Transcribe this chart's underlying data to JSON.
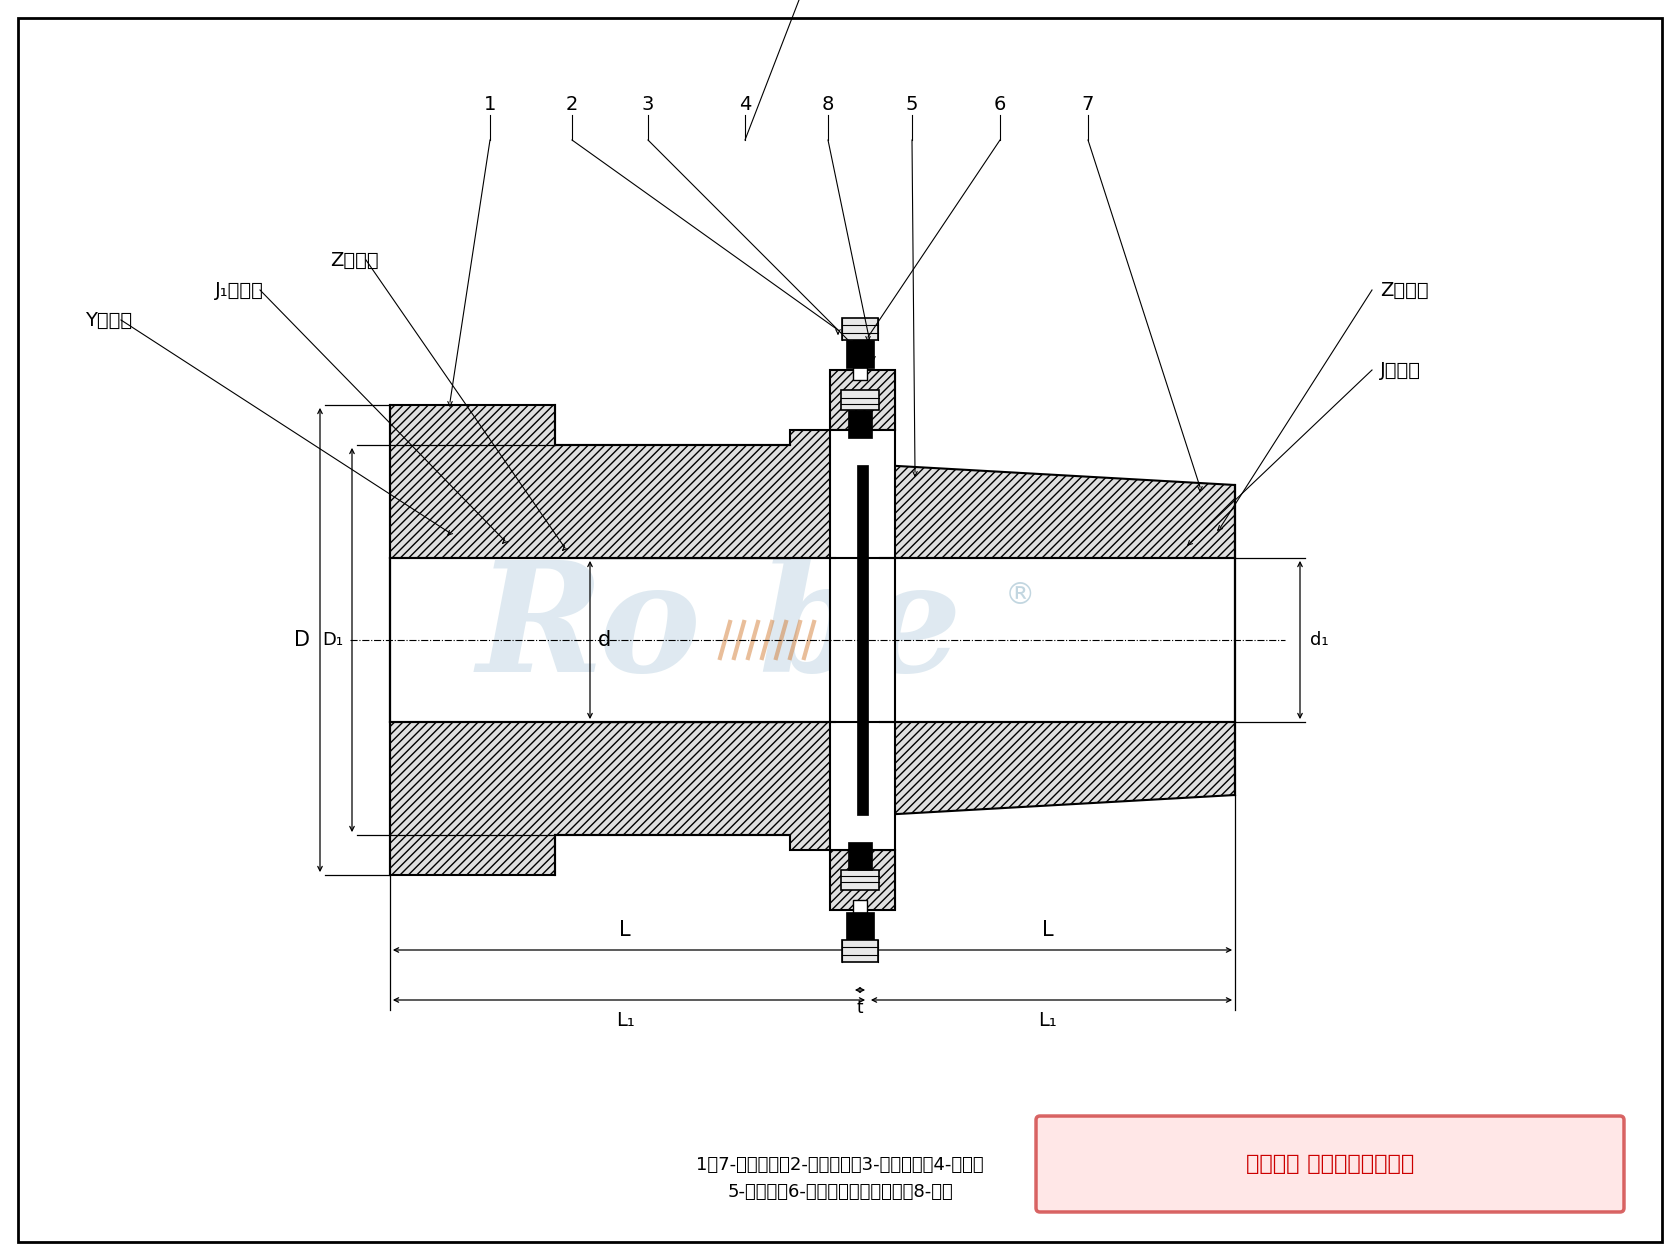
{
  "bg_color": "#ffffff",
  "fig_width": 16.8,
  "fig_height": 12.6,
  "caption_line1": "1、7-半联轴器；2-扣紧螺母；3-六角螺母；4-隔圈；",
  "caption_line2": "5-支撑座；6-六角头铸制孔用螺栓；8-膜片",
  "watermark_text": "版权所有 侵权必被严厉追究",
  "left_label_Y": "Y型轴孔",
  "left_label_J1": "J₁型轴孔",
  "left_label_Z": "Z型轴孔",
  "right_label_Z": "Z型轴孔",
  "right_label_J": "J型轴孔",
  "dim_D": "D",
  "dim_D1": "D₁",
  "dim_d": "d",
  "dim_d1": "d₁",
  "dim_L": "L",
  "dim_L1": "L₁",
  "dim_t": "t",
  "numbers": [
    "1",
    "2",
    "3",
    "4",
    "8",
    "5",
    "6",
    "7"
  ]
}
